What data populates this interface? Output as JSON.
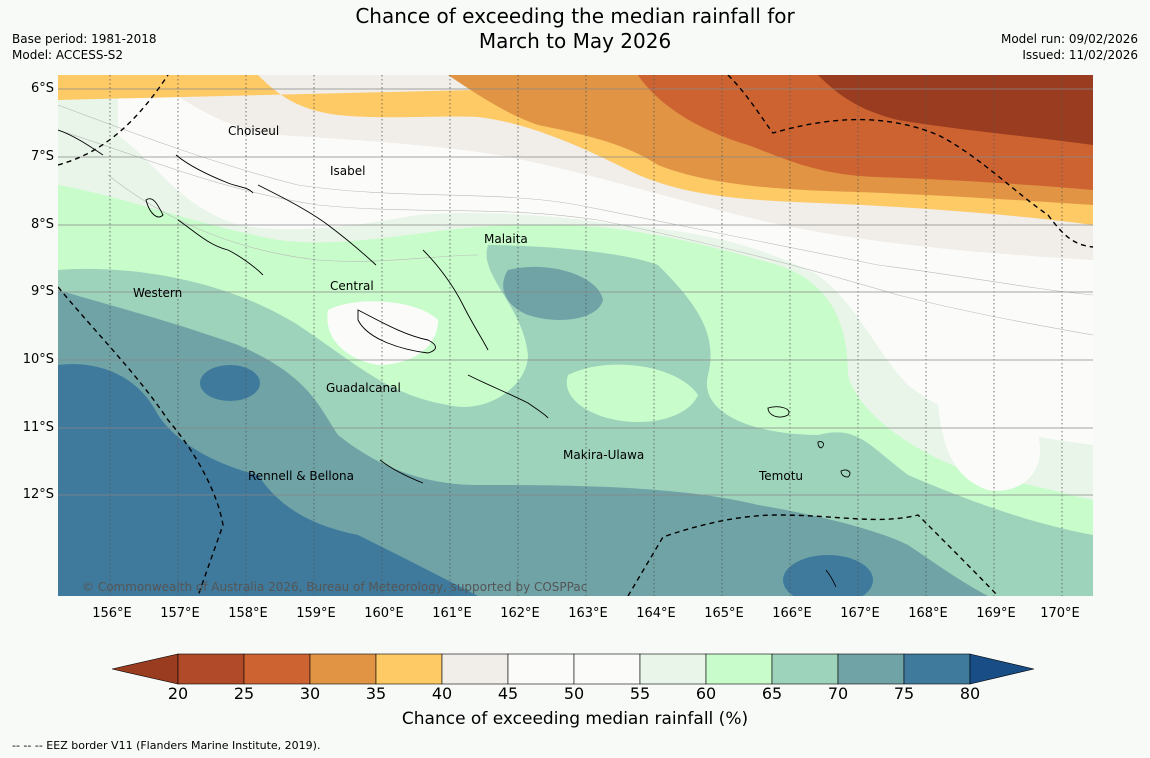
{
  "header": {
    "title_line1": "Chance of exceeding the median rainfall for",
    "title_line2": "March to May 2026",
    "base_period": "Base period: 1981-2018",
    "model": "Model: ACCESS-S2",
    "model_run": "Model run: 09/02/2026",
    "issued": "Issued: 11/02/2026"
  },
  "map": {
    "lat_labels": [
      "6°S",
      "7°S",
      "8°S",
      "9°S",
      "10°S",
      "11°S",
      "12°S"
    ],
    "lon_labels": [
      "156°E",
      "157°E",
      "158°E",
      "159°E",
      "160°E",
      "161°E",
      "162°E",
      "163°E",
      "164°E",
      "165°E",
      "166°E",
      "167°E",
      "168°E",
      "169°E",
      "170°E"
    ],
    "regions": {
      "choiseul": "Choiseul",
      "isabel": "Isabel",
      "malaita": "Malaita",
      "western": "Western",
      "central": "Central",
      "guadalcanal": "Guadalcanal",
      "makira": "Makira-Ulawa",
      "temotu": "Temotu",
      "rennell": "Rennell & Bellona"
    },
    "copyright": "© Commonwealth of Australia 2026, Bureau of Meteorology, supported by COSPPac"
  },
  "colorbar": {
    "ticks": [
      "20",
      "25",
      "30",
      "35",
      "40",
      "45",
      "50",
      "55",
      "60",
      "65",
      "70",
      "75",
      "80"
    ],
    "colors": [
      "#9a3c1f",
      "#b04a29",
      "#cc6331",
      "#e09444",
      "#fdca66",
      "#f1ede8",
      "#fbfcfa",
      "#fbfcfa",
      "#e8f5e8",
      "#c8fccb",
      "#9dd2bb",
      "#6fa3a6",
      "#3f7a9c",
      "#184d85"
    ],
    "title": "Chance of exceeding median rainfall (%)"
  },
  "footnote": "--  --  -- EEZ border V11 (Flanders Marine Institute, 2019)."
}
